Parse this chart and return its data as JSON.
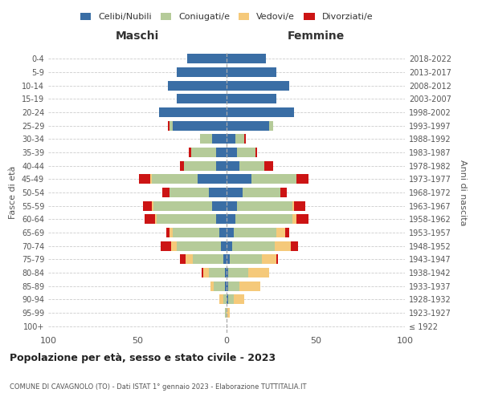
{
  "age_groups": [
    "100+",
    "95-99",
    "90-94",
    "85-89",
    "80-84",
    "75-79",
    "70-74",
    "65-69",
    "60-64",
    "55-59",
    "50-54",
    "45-49",
    "40-44",
    "35-39",
    "30-34",
    "25-29",
    "20-24",
    "15-19",
    "10-14",
    "5-9",
    "0-4"
  ],
  "birth_years": [
    "≤ 1922",
    "1923-1927",
    "1928-1932",
    "1933-1937",
    "1938-1942",
    "1943-1947",
    "1948-1952",
    "1953-1957",
    "1958-1962",
    "1963-1967",
    "1968-1972",
    "1973-1977",
    "1978-1982",
    "1983-1987",
    "1988-1992",
    "1993-1997",
    "1998-2002",
    "2003-2007",
    "2008-2012",
    "2013-2017",
    "2018-2022"
  ],
  "male": {
    "celibi": [
      0,
      0,
      0,
      1,
      1,
      2,
      3,
      4,
      6,
      8,
      10,
      16,
      6,
      6,
      8,
      30,
      38,
      28,
      33,
      28,
      22
    ],
    "coniugati": [
      0,
      1,
      2,
      6,
      9,
      17,
      25,
      26,
      33,
      33,
      22,
      26,
      18,
      14,
      7,
      2,
      0,
      0,
      0,
      0,
      0
    ],
    "vedovi": [
      0,
      0,
      2,
      2,
      3,
      4,
      3,
      2,
      1,
      1,
      0,
      1,
      0,
      0,
      0,
      0,
      0,
      0,
      0,
      0,
      0
    ],
    "divorziati": [
      0,
      0,
      0,
      0,
      1,
      3,
      6,
      2,
      6,
      5,
      4,
      6,
      2,
      1,
      0,
      1,
      0,
      0,
      0,
      0,
      0
    ]
  },
  "female": {
    "nubili": [
      0,
      0,
      1,
      1,
      1,
      2,
      3,
      4,
      5,
      6,
      9,
      14,
      7,
      6,
      5,
      24,
      38,
      28,
      35,
      28,
      22
    ],
    "coniugate": [
      0,
      0,
      3,
      6,
      11,
      18,
      24,
      24,
      32,
      31,
      21,
      25,
      14,
      10,
      5,
      2,
      0,
      0,
      0,
      0,
      0
    ],
    "vedove": [
      0,
      2,
      6,
      12,
      12,
      8,
      9,
      5,
      2,
      1,
      0,
      0,
      0,
      0,
      0,
      0,
      0,
      0,
      0,
      0,
      0
    ],
    "divorziate": [
      0,
      0,
      0,
      0,
      0,
      1,
      4,
      2,
      7,
      6,
      4,
      7,
      5,
      1,
      1,
      0,
      0,
      0,
      0,
      0,
      0
    ]
  },
  "colors": {
    "celibi": "#3a6ea5",
    "coniugati": "#b5cb99",
    "vedovi": "#f5c97a",
    "divorziati": "#cc1414"
  },
  "xlim": 100,
  "title": "Popolazione per età, sesso e stato civile - 2023",
  "subtitle": "COMUNE DI CAVAGNOLO (TO) - Dati ISTAT 1° gennaio 2023 - Elaborazione TUTTITALIA.IT",
  "ylabel": "Fasce di età",
  "ylabel_right": "Anni di nascita",
  "xlabel_left": "Maschi",
  "xlabel_right": "Femmine"
}
